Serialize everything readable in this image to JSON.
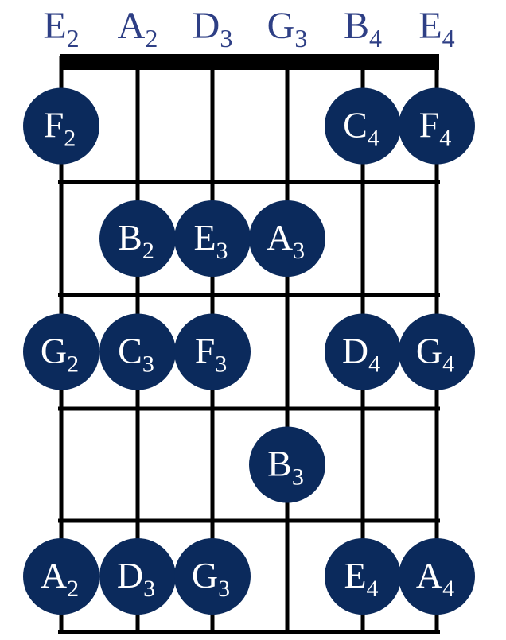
{
  "strings": [
    {
      "letter": "E",
      "octave": "2"
    },
    {
      "letter": "A",
      "octave": "2"
    },
    {
      "letter": "D",
      "octave": "3"
    },
    {
      "letter": "G",
      "octave": "3"
    },
    {
      "letter": "B",
      "octave": "4"
    },
    {
      "letter": "E",
      "octave": "4"
    }
  ],
  "fret_count": 5,
  "colors": {
    "dot": "#0b2a5c",
    "dot_text": "#ffffff",
    "string_label": "#2e3f85",
    "lines": "#000000"
  },
  "notes": [
    {
      "string": 0,
      "fret": 1,
      "letter": "F",
      "octave": "2"
    },
    {
      "string": 4,
      "fret": 1,
      "letter": "C",
      "octave": "4"
    },
    {
      "string": 5,
      "fret": 1,
      "letter": "F",
      "octave": "4"
    },
    {
      "string": 1,
      "fret": 2,
      "letter": "B",
      "octave": "2"
    },
    {
      "string": 2,
      "fret": 2,
      "letter": "E",
      "octave": "3"
    },
    {
      "string": 3,
      "fret": 2,
      "letter": "A",
      "octave": "3"
    },
    {
      "string": 0,
      "fret": 3,
      "letter": "G",
      "octave": "2"
    },
    {
      "string": 1,
      "fret": 3,
      "letter": "C",
      "octave": "3"
    },
    {
      "string": 2,
      "fret": 3,
      "letter": "F",
      "octave": "3"
    },
    {
      "string": 4,
      "fret": 3,
      "letter": "D",
      "octave": "4"
    },
    {
      "string": 5,
      "fret": 3,
      "letter": "G",
      "octave": "4"
    },
    {
      "string": 3,
      "fret": 4,
      "letter": "B",
      "octave": "3"
    },
    {
      "string": 0,
      "fret": 5,
      "letter": "A",
      "octave": "2"
    },
    {
      "string": 1,
      "fret": 5,
      "letter": "D",
      "octave": "3"
    },
    {
      "string": 2,
      "fret": 5,
      "letter": "G",
      "octave": "3"
    },
    {
      "string": 4,
      "fret": 5,
      "letter": "E",
      "octave": "4"
    },
    {
      "string": 5,
      "fret": 5,
      "letter": "A",
      "octave": "4"
    }
  ]
}
